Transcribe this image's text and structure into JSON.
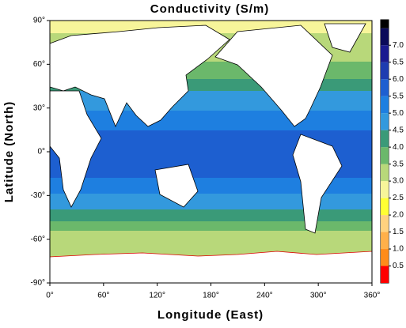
{
  "chart_data": {
    "type": "map",
    "title": "Conductivity (S/m)",
    "x_label": "Longitude (East)",
    "y_label": "Latitude (North)",
    "xlim": [
      0,
      360
    ],
    "ylim": [
      -90,
      90
    ],
    "xticks": [
      {
        "value": 0,
        "label": "0°"
      },
      {
        "value": 60,
        "label": "60°"
      },
      {
        "value": 120,
        "label": "120°"
      },
      {
        "value": 180,
        "label": "180°"
      },
      {
        "value": 240,
        "label": "240°"
      },
      {
        "value": 300,
        "label": "300°"
      },
      {
        "value": 360,
        "label": "360°"
      }
    ],
    "yticks": [
      {
        "value": -90,
        "label": "-90°"
      },
      {
        "value": -60,
        "label": "-60°"
      },
      {
        "value": -30,
        "label": "-30°"
      },
      {
        "value": 0,
        "label": "0°"
      },
      {
        "value": 30,
        "label": "30°"
      },
      {
        "value": 60,
        "label": "60°"
      },
      {
        "value": 90,
        "label": "90°"
      }
    ],
    "colorbar": {
      "lim": [
        0,
        7.75
      ],
      "levels": [
        0,
        0.5,
        1,
        1.5,
        2,
        2.5,
        3,
        3.5,
        4,
        4.5,
        5,
        5.5,
        6,
        6.5,
        7,
        7.5,
        7.75
      ],
      "colors": [
        "#ff0000",
        "#ff8c1a",
        "#ffb04a",
        "#ffd27f",
        "#ffff33",
        "#f7f59a",
        "#b8d87a",
        "#6bb86b",
        "#3a9a78",
        "#3399dd",
        "#1e7fe0",
        "#1d5fd0",
        "#1e3cb0",
        "#1a1a90",
        "#0a0a5a",
        "#000000"
      ],
      "ticks": [
        0.5,
        {
          "value": 1,
          "label": "1.0"
        },
        1.5,
        {
          "value": 2,
          "label": "2.0"
        },
        2.5,
        {
          "value": 3,
          "label": "3.0"
        },
        3.5,
        {
          "value": 4,
          "label": "4.0"
        },
        4.5,
        {
          "value": 5,
          "label": "5.0"
        },
        5.5,
        {
          "value": 6,
          "label": "6.0"
        },
        6.5,
        {
          "value": 7,
          "label": "7.0"
        }
      ]
    }
  }
}
